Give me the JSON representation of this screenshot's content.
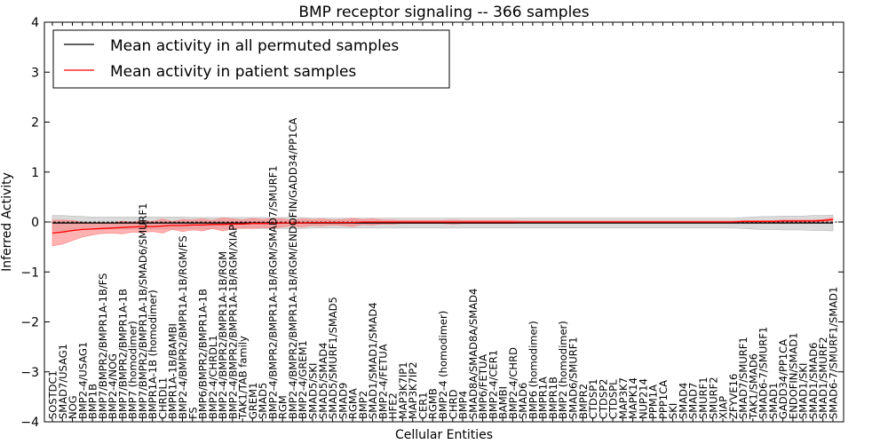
{
  "chart_data": {
    "type": "line",
    "title": "BMP receptor signaling -- 366 samples",
    "xlabel": "Cellular Entities",
    "ylabel": "Inferred Activity",
    "ylim": [
      -4,
      4
    ],
    "yticks": [
      -4,
      -3,
      -2,
      -1,
      0,
      1,
      2,
      3,
      4
    ],
    "legend_position": "upper-left",
    "categories": [
      "SOSTDC1",
      "SMAD7/USAG1",
      "NOG",
      "BMP2-4/USAG1",
      "BMP1B",
      "BMP7/BMPR2/BMPR1A-1B/FS",
      "BMP2-4/NOG",
      "BMP7/BMPR2/BMPR1A-1B",
      "BMP7 (homodimer)",
      "BMP7/BMPR2/BMPR1A-1B/SMAD6/SMURF1",
      "BMPR1A-1B (homodimer)",
      "CHRDL1",
      "BMPR1A-1B/BAMBI",
      "BMP2-4/BMPR2/BMPR1A-1B/RGM/FS",
      "FS",
      "BMP6/BMPR2/BMPR1A-1B",
      "BMP2-4/CHRDL1",
      "BMP2-4/BMPR2/BMPR1A-1B/RGM",
      "BMP2-4/BMPR2/BMPR1A-1B/RGM/XIAP",
      "TAK1/TAB family",
      "GREM1",
      "SMAD5",
      "BMP2-4/BMPR2/BMPR1A-1B/RGM/SMAD7/SMURF1",
      "RGM",
      "BMP2-4/BMPR2/BMPR1A-1B/RGM/ENDOFIN/GADD34/PP1CA",
      "BMP2-4/GREM1",
      "SMAD5/SKI",
      "SMAD5/SMAD4",
      "SMAD5/SMURF1/SMAD5",
      "SMAD9",
      "RGMA",
      "BMP2",
      "SMAD1/SMAD1/SMAD4",
      "BMP2-4/FETUA",
      "HFE2",
      "MAP3K7IP1",
      "MAP3K7IP2",
      "CER1",
      "RGMB",
      "BMP2-4 (homodimer)",
      "CHRD",
      "BMP4",
      "SMAD8A/SMAD8A/SMAD4",
      "BMP6/FETUA",
      "BMP2-4/CER1",
      "BAMBI",
      "BMP2-4/CHRD",
      "SMAD6",
      "BMP6 (homodimer)",
      "BMPR1A",
      "BMPR1B",
      "BMP2 (homodimer)",
      "SMAD6/SMURF1",
      "BMPR2",
      "CTDSP1",
      "CTDSP2",
      "CTDSPL",
      "MAP3K7",
      "MAPK14",
      "NUP214",
      "PPM1A",
      "PPP1CA",
      "SKI",
      "SMAD4",
      "SMAD7",
      "SMURF1",
      "SMURF2",
      "XIAP",
      "ZFYVE16",
      "SMAD7/SMURF1",
      "TAK1/SMAD6",
      "SMAD6-7/SMURF1",
      "SMAD1",
      "GADD34/PP1CA",
      "ENDOFIN/SMAD1",
      "SMAD1/SKI",
      "SMAD1/SMAD6",
      "SMAD1/SMURF2",
      "SMAD6-7/SMURF1/SMAD1"
    ],
    "series": [
      {
        "name": "Mean activity in all permuted samples",
        "color": "#000000",
        "band_color": "#bbbbbb",
        "values": [
          -0.02,
          -0.02,
          -0.02,
          -0.02,
          -0.02,
          -0.02,
          -0.02,
          -0.02,
          -0.02,
          -0.02,
          -0.02,
          -0.02,
          -0.02,
          -0.02,
          -0.02,
          -0.02,
          -0.02,
          -0.02,
          -0.02,
          -0.02,
          -0.02,
          -0.02,
          -0.02,
          -0.02,
          -0.02,
          -0.02,
          -0.02,
          -0.02,
          -0.02,
          -0.02,
          -0.02,
          -0.02,
          -0.02,
          -0.02,
          -0.02,
          -0.02,
          -0.02,
          -0.02,
          -0.02,
          -0.02,
          -0.02,
          -0.02,
          -0.02,
          -0.02,
          -0.02,
          -0.02,
          -0.02,
          -0.02,
          -0.02,
          -0.02,
          -0.02,
          -0.02,
          -0.02,
          -0.02,
          -0.02,
          -0.02,
          -0.02,
          -0.02,
          -0.02,
          -0.02,
          -0.02,
          -0.02,
          -0.02,
          -0.02,
          -0.02,
          -0.02,
          -0.02,
          -0.02,
          -0.02,
          -0.02,
          -0.02,
          -0.02,
          -0.02,
          -0.02,
          -0.02,
          -0.02,
          -0.02,
          -0.02,
          -0.02
        ],
        "band_halfwidth": [
          0.15,
          0.15,
          0.14,
          0.13,
          0.12,
          0.12,
          0.12,
          0.12,
          0.12,
          0.12,
          0.12,
          0.12,
          0.12,
          0.12,
          0.11,
          0.11,
          0.11,
          0.11,
          0.11,
          0.11,
          0.11,
          0.11,
          0.11,
          0.11,
          0.11,
          0.11,
          0.1,
          0.1,
          0.1,
          0.1,
          0.1,
          0.1,
          0.1,
          0.1,
          0.1,
          0.1,
          0.1,
          0.1,
          0.1,
          0.1,
          0.1,
          0.1,
          0.1,
          0.1,
          0.1,
          0.1,
          0.1,
          0.1,
          0.1,
          0.1,
          0.1,
          0.1,
          0.1,
          0.1,
          0.1,
          0.1,
          0.1,
          0.1,
          0.1,
          0.1,
          0.1,
          0.1,
          0.1,
          0.1,
          0.1,
          0.1,
          0.1,
          0.1,
          0.1,
          0.11,
          0.12,
          0.13,
          0.13,
          0.14,
          0.14,
          0.14,
          0.15,
          0.15,
          0.16
        ]
      },
      {
        "name": "Mean activity in patient samples",
        "color": "#ff0000",
        "band_color": "#ff7f7f",
        "values": [
          -0.22,
          -0.2,
          -0.17,
          -0.15,
          -0.14,
          -0.13,
          -0.12,
          -0.11,
          -0.1,
          -0.09,
          -0.09,
          -0.08,
          -0.07,
          -0.07,
          -0.06,
          -0.06,
          -0.05,
          -0.05,
          -0.04,
          -0.04,
          -0.03,
          -0.03,
          -0.03,
          -0.02,
          -0.02,
          -0.02,
          -0.01,
          -0.01,
          -0.01,
          -0.01,
          -0.01,
          0.0,
          0.0,
          0.0,
          0.0,
          0.0,
          0.0,
          0.0,
          0.0,
          0.0,
          0.0,
          0.0,
          0.0,
          0.0,
          0.0,
          0.0,
          0.0,
          0.0,
          0.0,
          0.0,
          0.0,
          0.0,
          0.0,
          0.0,
          0.0,
          0.0,
          0.0,
          0.0,
          0.0,
          0.0,
          0.0,
          0.0,
          0.0,
          0.0,
          0.0,
          0.0,
          0.0,
          0.0,
          0.0,
          0.01,
          0.01,
          0.01,
          0.01,
          0.02,
          0.02,
          0.02,
          0.02,
          0.03,
          0.05
        ],
        "band_halfwidth": [
          0.26,
          0.24,
          0.2,
          0.15,
          0.12,
          0.1,
          0.1,
          0.13,
          0.1,
          0.12,
          0.1,
          0.14,
          0.08,
          0.12,
          0.1,
          0.12,
          0.08,
          0.13,
          0.1,
          0.08,
          0.1,
          0.08,
          0.1,
          0.08,
          0.06,
          0.08,
          0.06,
          0.07,
          0.05,
          0.06,
          0.08,
          0.05,
          0.06,
          0.04,
          0.04,
          0.03,
          0.03,
          0.03,
          0.03,
          0.03,
          0.04,
          0.03,
          0.03,
          0.03,
          0.03,
          0.03,
          0.03,
          0.02,
          0.02,
          0.02,
          0.02,
          0.02,
          0.02,
          0.02,
          0.02,
          0.02,
          0.02,
          0.02,
          0.02,
          0.02,
          0.02,
          0.02,
          0.02,
          0.02,
          0.02,
          0.02,
          0.02,
          0.02,
          0.02,
          0.02,
          0.02,
          0.02,
          0.02,
          0.02,
          0.02,
          0.02,
          0.02,
          0.02,
          0.03
        ]
      }
    ]
  }
}
